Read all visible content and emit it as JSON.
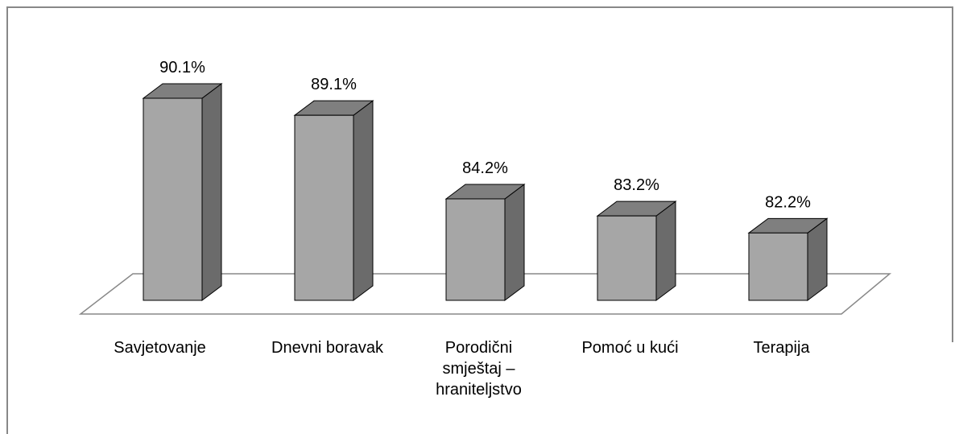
{
  "chart_data": {
    "type": "bar3d",
    "categories": [
      "Savjetovanje",
      "Dnevni boravak",
      "Porodični smještaj – hraniteljstvo",
      "Pomoć u kući",
      "Terapija"
    ],
    "values": [
      90.1,
      89.1,
      84.2,
      83.2,
      82.2
    ],
    "value_labels": [
      "90.1%",
      "89.1%",
      "84.2%",
      "83.2%",
      "82.2%"
    ],
    "color": "#a6a6a6"
  }
}
